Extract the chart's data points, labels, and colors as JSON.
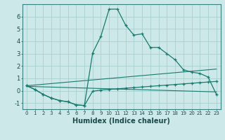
{
  "xlabel": "Humidex (Indice chaleur)",
  "background_color": "#cce8e8",
  "grid_color": "#aacfcf",
  "line_color": "#1a7a6e",
  "xlim": [
    -0.5,
    23.5
  ],
  "ylim": [
    -1.5,
    7.0
  ],
  "yticks": [
    -1,
    0,
    1,
    2,
    3,
    4,
    5,
    6
  ],
  "xticks": [
    0,
    1,
    2,
    3,
    4,
    5,
    6,
    7,
    8,
    9,
    10,
    11,
    12,
    13,
    14,
    15,
    16,
    17,
    18,
    19,
    20,
    21,
    22,
    23
  ],
  "curve1_x": [
    0,
    1,
    2,
    3,
    4,
    5,
    6,
    7,
    8,
    9,
    10,
    11,
    12,
    13,
    14,
    15,
    16,
    17,
    18,
    19,
    20,
    21,
    22,
    23
  ],
  "curve1_y": [
    0.4,
    0.1,
    -0.3,
    -0.6,
    -0.8,
    -0.9,
    -1.15,
    -1.2,
    3.05,
    4.4,
    6.6,
    6.6,
    5.3,
    4.5,
    4.6,
    3.5,
    3.5,
    3.0,
    2.5,
    1.7,
    1.5,
    1.4,
    1.1,
    -0.3
  ],
  "curve2_x": [
    0,
    1,
    2,
    3,
    4,
    5,
    6,
    7,
    8,
    9,
    10,
    11,
    12,
    13,
    14,
    15,
    16,
    17,
    18,
    19,
    20,
    21,
    22,
    23
  ],
  "curve2_y": [
    0.4,
    0.1,
    -0.3,
    -0.6,
    -0.8,
    -0.9,
    -1.15,
    -1.2,
    -0.05,
    0.05,
    0.1,
    0.15,
    0.2,
    0.25,
    0.3,
    0.35,
    0.4,
    0.45,
    0.5,
    0.55,
    0.6,
    0.65,
    0.7,
    0.75
  ],
  "line1_x": [
    0,
    23
  ],
  "line1_y": [
    0.4,
    1.75
  ],
  "line2_x": [
    0,
    23
  ],
  "line2_y": [
    0.35,
    -0.1
  ]
}
